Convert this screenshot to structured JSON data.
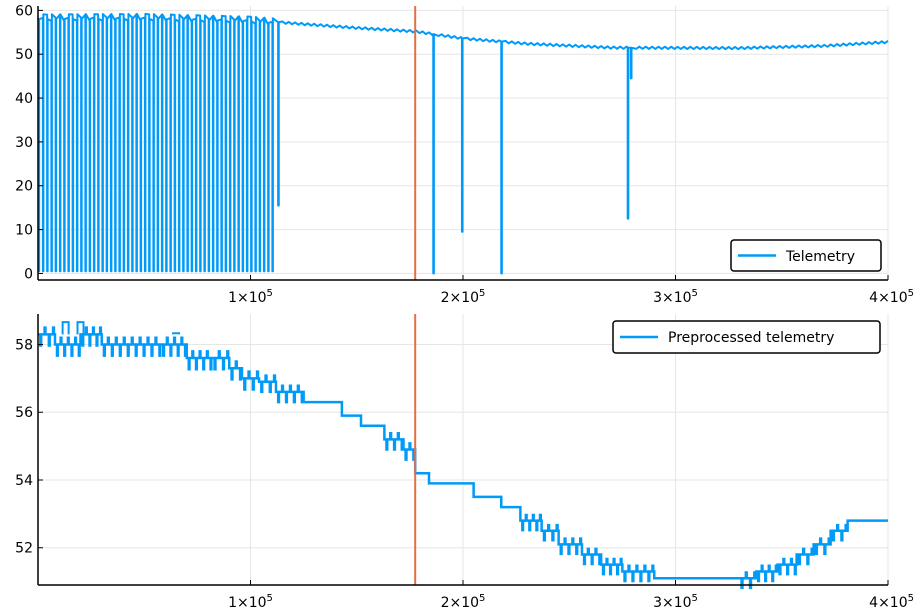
{
  "colors": {
    "series": "#009af9",
    "vline": "#e26f46",
    "grid": "#e6e6e6",
    "axis": "#000000"
  },
  "chart_data": [
    {
      "type": "line",
      "xlim": [
        0,
        400000
      ],
      "ylim": [
        -1.5,
        61
      ],
      "grid": true,
      "legend_position": "bottom-right",
      "x_ticks": [
        {
          "value": 100000,
          "base": "1×10",
          "exp": "5"
        },
        {
          "value": 200000,
          "base": "2×10",
          "exp": "5"
        },
        {
          "value": 300000,
          "base": "3×10",
          "exp": "5"
        },
        {
          "value": 400000,
          "base": "4×10",
          "exp": "5"
        }
      ],
      "y_ticks": [
        {
          "value": 0,
          "label": "0"
        },
        {
          "value": 10,
          "label": "10"
        },
        {
          "value": 20,
          "label": "20"
        },
        {
          "value": 30,
          "label": "30"
        },
        {
          "value": 40,
          "label": "40"
        },
        {
          "value": 50,
          "label": "50"
        },
        {
          "value": 60,
          "label": "60"
        }
      ],
      "vline_x": 177500,
      "series": [
        {
          "name": "Telemetry",
          "baseline": [
            [
              0,
              58.3
            ],
            [
              50000,
              58.4
            ],
            [
              100000,
              57.8
            ],
            [
              113000,
              57.3
            ],
            [
              150000,
              56.0
            ],
            [
              177500,
              55.2
            ],
            [
              200000,
              53.6
            ],
            [
              230000,
              52.4
            ],
            [
              270000,
              51.5
            ],
            [
              330000,
              51.4
            ],
            [
              370000,
              51.9
            ],
            [
              400000,
              52.8
            ]
          ],
          "dropouts": [
            {
              "x_start": 0,
              "x_end": 112000,
              "count": 56,
              "bottom": 0.5,
              "top_jitter": 1.2
            },
            {
              "x": 113000,
              "bottom": 15.5
            },
            {
              "x": 186000,
              "bottom": 0
            },
            {
              "x": 199500,
              "bottom": 9.5
            },
            {
              "x": 218000,
              "bottom": 0
            },
            {
              "x": 277500,
              "bottom": 12.5
            },
            {
              "x": 279000,
              "bottom": 44.5
            }
          ]
        }
      ]
    },
    {
      "type": "line",
      "xlim": [
        0,
        400000
      ],
      "ylim": [
        50.9,
        58.9
      ],
      "grid": true,
      "legend_position": "top-right",
      "x_ticks": [
        {
          "value": 100000,
          "base": "1×10",
          "exp": "5"
        },
        {
          "value": 200000,
          "base": "2×10",
          "exp": "5"
        },
        {
          "value": 300000,
          "base": "3×10",
          "exp": "5"
        },
        {
          "value": 400000,
          "base": "4×10",
          "exp": "5"
        }
      ],
      "y_ticks": [
        {
          "value": 52,
          "label": "52"
        },
        {
          "value": 54,
          "label": "54"
        },
        {
          "value": 56,
          "label": "56"
        },
        {
          "value": 58,
          "label": "58"
        }
      ],
      "vline_x": 177500,
      "series": [
        {
          "name": "Preprocessed telemetry",
          "steps": [
            [
              0,
              58.3
            ],
            [
              8000,
              58.0
            ],
            [
              20000,
              58.3
            ],
            [
              30000,
              58.0
            ],
            [
              45000,
              58.0
            ],
            [
              58000,
              58.0
            ],
            [
              70000,
              57.6
            ],
            [
              82000,
              57.6
            ],
            [
              90000,
              57.3
            ],
            [
              96000,
              57.0
            ],
            [
              104000,
              56.9
            ],
            [
              112000,
              56.6
            ],
            [
              125000,
              56.3
            ],
            [
              132000,
              56.3
            ],
            [
              143000,
              55.9
            ],
            [
              152000,
              55.6
            ],
            [
              163000,
              55.2
            ],
            [
              172000,
              54.9
            ],
            [
              177500,
              54.2
            ],
            [
              184000,
              53.9
            ],
            [
              194000,
              53.9
            ],
            [
              205000,
              53.5
            ],
            [
              218000,
              53.2
            ],
            [
              227000,
              52.8
            ],
            [
              237000,
              52.5
            ],
            [
              245000,
              52.1
            ],
            [
              256000,
              51.8
            ],
            [
              265000,
              51.5
            ],
            [
              275000,
              51.3
            ],
            [
              290000,
              51.1
            ],
            [
              300000,
              51.1
            ],
            [
              315000,
              51.1
            ],
            [
              330000,
              51.1
            ],
            [
              338000,
              51.3
            ],
            [
              348000,
              51.5
            ],
            [
              357000,
              51.8
            ],
            [
              365000,
              52.1
            ],
            [
              373000,
              52.5
            ],
            [
              381000,
              52.8
            ],
            [
              400000,
              52.8
            ]
          ],
          "oscillation_regions": [
            {
              "x_start": 0,
              "x_end": 100000,
              "amplitude": 0.33
            },
            {
              "x_start": 100000,
              "x_end": 120000,
              "amplitude": 0.3
            },
            {
              "x_start": 160000,
              "x_end": 175000,
              "amplitude": 0.3
            },
            {
              "x_start": 225000,
              "x_end": 285000,
              "amplitude": 0.28
            },
            {
              "x_start": 330000,
              "x_end": 385000,
              "amplitude": 0.28
            }
          ],
          "spikes": [
            [
              13000,
              58.66
            ],
            [
              20000,
              58.66
            ],
            [
              65000,
              58.33
            ]
          ]
        }
      ]
    }
  ]
}
